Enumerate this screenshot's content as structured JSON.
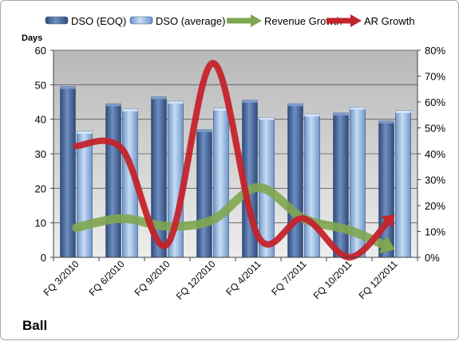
{
  "company": "Ball",
  "chart_data": {
    "type": "bar",
    "categories": [
      "FQ 3/2010",
      "FQ 6/2010",
      "FQ 9/2010",
      "FQ 12/2010",
      "FQ 4/2011",
      "FQ 7/2011",
      "FQ 10/2011",
      "FQ 12/2011"
    ],
    "ylabel": "Days",
    "ylim": [
      0,
      60
    ],
    "yticks": [
      0,
      10,
      20,
      30,
      40,
      50,
      60
    ],
    "y2lim": [
      0,
      80
    ],
    "y2ticks": [
      "0%",
      "10%",
      "20%",
      "30%",
      "40%",
      "50%",
      "60%",
      "70%",
      "80%"
    ],
    "grid": true,
    "legend_position": "top",
    "series": [
      {
        "name": "DSO (EOQ)",
        "type": "bar",
        "axis": "left",
        "color": "#4a6a9c",
        "values": [
          49.5,
          44.5,
          46.5,
          37,
          45.5,
          44.5,
          41.8,
          39.5
        ]
      },
      {
        "name": "DSO (average)",
        "type": "bar",
        "axis": "left",
        "color": "#8fb3e0",
        "values": [
          36.5,
          43,
          45.2,
          43.2,
          40.5,
          41.5,
          43.5,
          42.5
        ]
      },
      {
        "name": "Revenue Growth",
        "type": "line",
        "axis": "right",
        "unit": "%",
        "color": "#77933c",
        "values": [
          11.5,
          15,
          12,
          14.5,
          27,
          15,
          10.5,
          3
        ]
      },
      {
        "name": "AR Growth",
        "type": "line",
        "axis": "right",
        "unit": "%",
        "color": "#c0262d",
        "values": [
          43,
          42,
          5,
          75,
          8,
          15,
          0,
          16.5
        ]
      }
    ]
  }
}
